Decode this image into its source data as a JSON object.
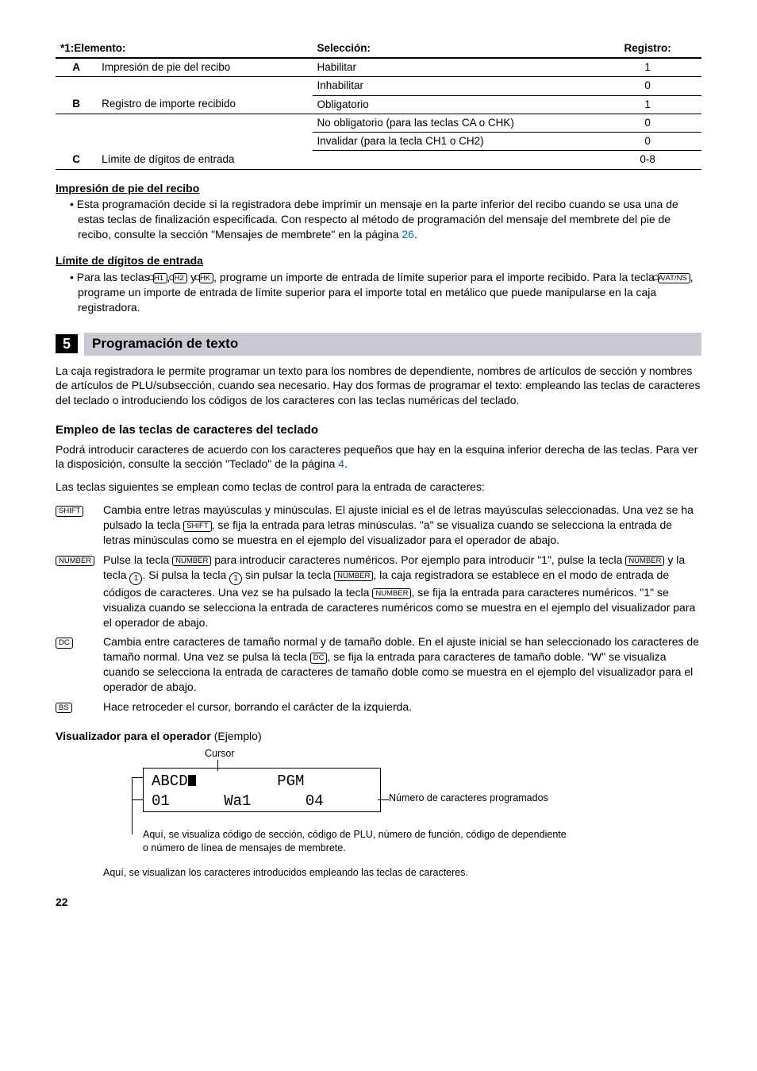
{
  "table": {
    "head1": "*1:Elemento:",
    "head2": "Selección:",
    "head3": "Registro:",
    "rows": [
      {
        "letter": "A",
        "item": "Impresión de pie del recibo",
        "sel": "Habilitar",
        "reg": "1"
      },
      {
        "letter": "",
        "item": "",
        "sel": "Inhabilitar",
        "reg": "0"
      },
      {
        "letter": "B",
        "item": "Registro de importe recibido",
        "sel": "Obligatorio",
        "reg": "1"
      },
      {
        "letter": "",
        "item": "",
        "sel": "No obligatorio (para las teclas CA o CHK)",
        "reg": "0"
      },
      {
        "letter": "",
        "item": "",
        "sel": "Invalidar (para la tecla CH1 o CH2)",
        "reg": "0"
      },
      {
        "letter": "C",
        "item": "Límite de dígitos de entrada",
        "sel": "",
        "reg": "0-8"
      }
    ]
  },
  "sec1": {
    "title": "Impresión de pie del recibo",
    "bullet": "• Esta programación decide si la registradora debe imprimir un mensaje en la parte inferior del recibo cuando se usa una de estas teclas de finalización especificada. Con respecto al método de programación del mensaje del membrete del pie de recibo, consulte la sección \"Mensajes de membrete\" en la página ",
    "link": "26",
    "end": "."
  },
  "sec2": {
    "title": "Límite de dígitos de entrada",
    "pre": "• Para las teclas ",
    "k1": "CH1",
    "mid1": ", ",
    "k2": "CH2",
    "mid2": " y ",
    "k3": "CHK",
    "post1": ", programe un importe de entrada de límite superior para el importe recibido. Para la tecla ",
    "k4": "CA/AT/NS",
    "post2": ", programe un importe de entrada de límite superior para el importe total en metálico que puede manipularse en la caja registradora."
  },
  "h5": {
    "num": "5",
    "title": "Programación de texto"
  },
  "intro": "La caja registradora le permite programar un texto para los nombres de dependiente, nombres de artículos de sección y nombres de artículos de PLU/subsección, cuando sea necesario. Hay dos formas de programar el texto: empleando las teclas de caracteres del teclado o introduciendo los códigos de los caracteres con las teclas numéricas del teclado.",
  "sub1": "Empleo de las teclas de caracteres del teclado",
  "p1a": "Podrá introducir caracteres de acuerdo con los caracteres pequeños que hay en la esquina inferior derecha de las teclas. Para ver la disposición, consulte la sección \"Teclado\" de la página ",
  "p1link": "4",
  "p1end": ".",
  "p2": "Las teclas siguientes se emplean como teclas de control para la entrada de caracteres:",
  "keys": {
    "shift": {
      "cap": "SHIFT",
      "text1": "Cambia entre letras mayúsculas y minúsculas. El ajuste inicial es el de letras mayúsculas seleccionadas. Una vez se ha pulsado la tecla ",
      "cap2": "SHIFT",
      "text2": ", se fija la entrada para letras minúsculas. \"a\" se visualiza cuando se selecciona la entrada de letras minúsculas como se muestra en el ejemplo del visualizador para el operador de abajo."
    },
    "number": {
      "cap": "NUMBER",
      "t1": "Pulse la tecla ",
      "cap2": "NUMBER",
      "t2": " para introducir caracteres numéricos. Por ejemplo para introducir \"1\", pulse la tecla ",
      "cap3": "NUMBER",
      "t3": " y la tecla ",
      "circ1": "1",
      "t4": ".  Si pulsa la tecla ",
      "circ2": "1",
      "t5": " sin pulsar la tecla ",
      "cap4": "NUMBER",
      "t6": ", la caja registradora se establece en el modo de entrada de códigos de caracteres. Una vez se ha pulsado la tecla ",
      "cap5": "NUMBER",
      "t7": ", se fija la entrada para caracteres numéricos. \"1\" se visualiza cuando se selecciona la entrada de caracteres numéricos como se muestra en el ejemplo del visualizador para el operador de abajo."
    },
    "dc": {
      "cap": "DC",
      "t1": "Cambia entre caracteres de tamaño normal y de tamaño doble. En el ajuste inicial se han seleccionado los caracteres de tamaño normal. Una vez se pulsa la tecla ",
      "cap2": "DC",
      "t2": ", se fija la entrada para caracteres de tamaño doble. \"W\" se visualiza cuando se selecciona la entrada de caracteres de tamaño doble como se muestra en el ejemplo del visualizador para el operador de abajo."
    },
    "bs": {
      "cap": "BS",
      "t": "Hace retroceder el cursor, borrando el carácter de la izquierda."
    }
  },
  "vis": {
    "head": "Visualizador para el operador",
    "headnote": " (Ejemplo)",
    "cursor": "Cursor",
    "line1a": "ABCD",
    "line1b": "         PGM",
    "line2": "01      Wa1      04",
    "rightann": "Número de caracteres programados",
    "below": "Aquí, se visualiza código de sección, código de PLU, número de función, código de dependiente o número de línea de mensajes de membrete.",
    "far": "Aquí, se visualizan los caracteres introducidos empleando las teclas de caracteres."
  },
  "pagenum": "22"
}
